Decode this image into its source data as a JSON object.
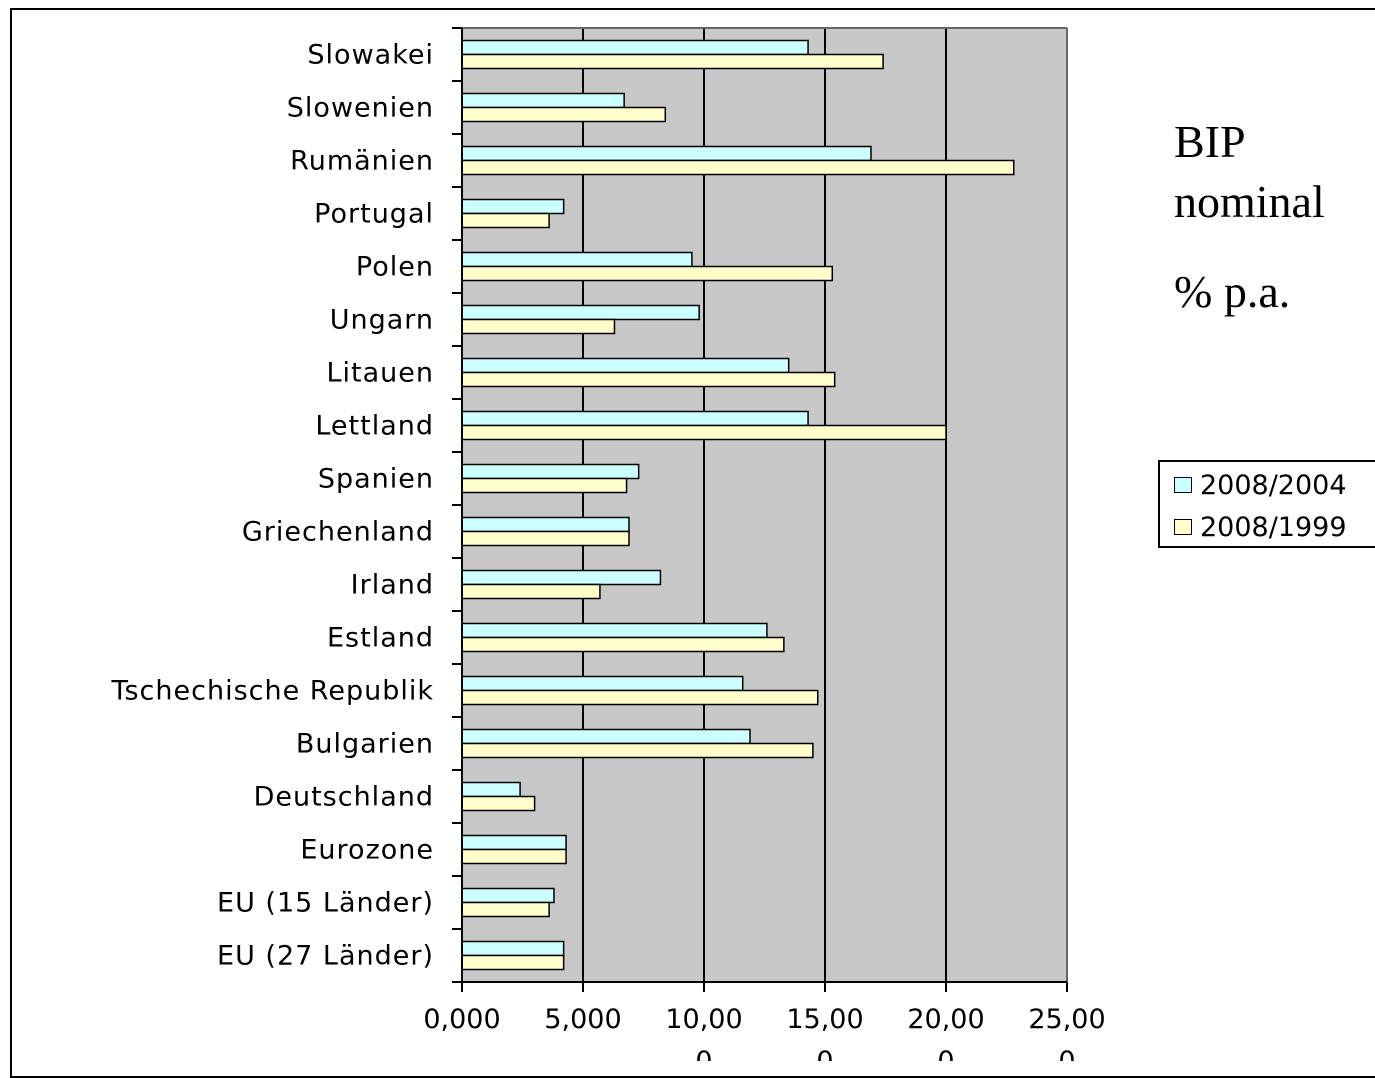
{
  "colors": {
    "plot_background": "#c8c8c8",
    "series_2004": "#ccffff",
    "series_1999": "#ffffcc",
    "bar_border": "#000000"
  },
  "side_title": {
    "line1": "BIP",
    "line2": "nominal",
    "unit": "% p.a."
  },
  "chart_data": {
    "type": "bar",
    "orientation": "horizontal",
    "title": "",
    "xlabel": "",
    "ylabel": "",
    "xlim": [
      0,
      25
    ],
    "grid": true,
    "legend_position": "right",
    "categories": [
      "Slowakei",
      "Slowenien",
      "Rumänien",
      "Portugal",
      "Polen",
      "Ungarn",
      "Litauen",
      "Lettland",
      "Spanien",
      "Griechenland",
      "Irland",
      "Estland",
      "Tschechische Republik",
      "Bulgarien",
      "Deutschland",
      "Eurozone",
      "EU (15 Länder)",
      "EU (27 Länder)"
    ],
    "series": [
      {
        "name": "2008/2004",
        "values": [
          14.3,
          6.7,
          16.9,
          4.2,
          9.5,
          9.8,
          13.5,
          14.3,
          7.3,
          6.9,
          8.2,
          12.6,
          11.6,
          11.9,
          2.4,
          4.3,
          3.8,
          4.2
        ]
      },
      {
        "name": "2008/1999",
        "values": [
          17.4,
          8.4,
          22.8,
          3.6,
          15.3,
          6.3,
          15.4,
          20.0,
          6.8,
          6.9,
          5.7,
          13.3,
          14.7,
          14.5,
          3.0,
          4.3,
          3.6,
          4.2
        ]
      }
    ],
    "x_tick_labels": [
      {
        "value": 0,
        "line1": "0,000",
        "line2": ""
      },
      {
        "value": 5,
        "line1": "5,000",
        "line2": ""
      },
      {
        "value": 10,
        "line1": "10,00",
        "line2": "0"
      },
      {
        "value": 15,
        "line1": "15,00",
        "line2": "0"
      },
      {
        "value": 20,
        "line1": "20,00",
        "line2": "0"
      },
      {
        "value": 25,
        "line1": "25,00",
        "line2": "0"
      }
    ]
  }
}
